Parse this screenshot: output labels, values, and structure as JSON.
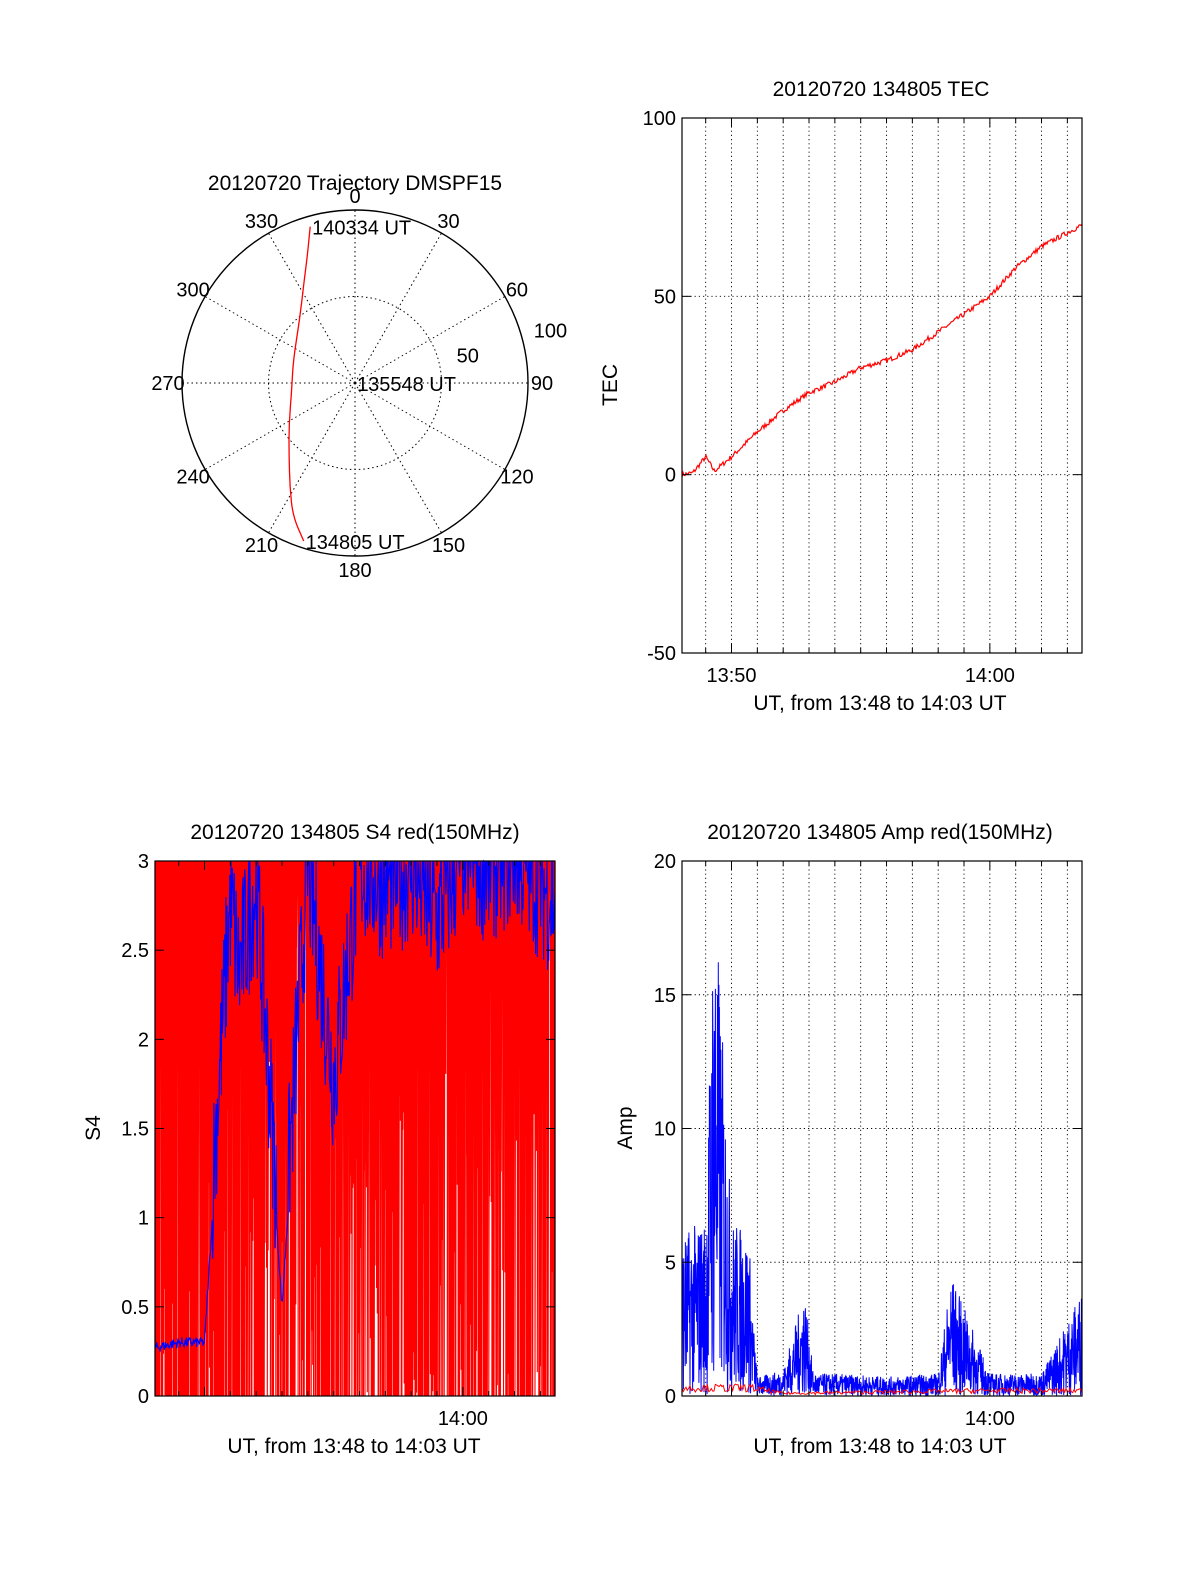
{
  "chart_data": [
    {
      "type": "polar",
      "title": "20120720 Trajectory DMSPF15",
      "angle_labels": [
        "0",
        "30",
        "60",
        "90",
        "120",
        "150",
        "180",
        "210",
        "240",
        "270",
        "300",
        "330"
      ],
      "radius_labels": [
        "50",
        "100"
      ],
      "rmax": 100,
      "series": [
        {
          "color": "#ff0000",
          "points": [
            {
              "az": 344,
              "r": 94
            },
            {
              "az": 340,
              "r": 80
            },
            {
              "az": 333,
              "r": 65
            },
            {
              "az": 318,
              "r": 48
            },
            {
              "az": 290,
              "r": 38
            },
            {
              "az": 262,
              "r": 37
            },
            {
              "az": 238,
              "r": 45
            },
            {
              "az": 222,
              "r": 57
            },
            {
              "az": 212,
              "r": 71
            },
            {
              "az": 205,
              "r": 85
            },
            {
              "az": 198,
              "r": 96
            }
          ]
        }
      ],
      "annotations": [
        {
          "text": "140334 UT",
          "az": 344,
          "r": 94
        },
        {
          "text": "135548 UT",
          "az": 180,
          "r": 0
        },
        {
          "text": "134805 UT",
          "az": 198,
          "r": 96
        }
      ]
    },
    {
      "type": "line",
      "title": "20120720 134805 TEC",
      "xlabel": "UT, from 13:48 to 14:03 UT",
      "ylabel": "TEC",
      "xlim": [
        "13:48:05",
        "14:03:34"
      ],
      "ylim": [
        -50,
        100
      ],
      "yticks": [
        -50,
        0,
        50,
        100
      ],
      "xticks": [
        "13:50",
        "14:00"
      ],
      "grid": true,
      "series": [
        {
          "color": "#ff0000",
          "x": [
            "13:48:05",
            "13:48:30",
            "13:49:00",
            "13:49:20",
            "13:49:40",
            "13:50:00",
            "13:51:00",
            "13:52:00",
            "13:53:00",
            "13:54:00",
            "13:55:00",
            "13:56:00",
            "13:57:00",
            "13:58:00",
            "13:59:00",
            "14:00:00",
            "14:01:00",
            "14:02:00",
            "14:03:34"
          ],
          "y": [
            0,
            0.5,
            5,
            1,
            3,
            5,
            12,
            18,
            23,
            26,
            30,
            32,
            35,
            40,
            45,
            50,
            58,
            64,
            70
          ]
        }
      ]
    },
    {
      "type": "line",
      "title": "20120720 134805 S4 red(150MHz)",
      "xlabel": "UT, from 13:48 to 14:03 UT",
      "ylabel": "S4",
      "xlim": [
        "13:48:05",
        "14:03:34"
      ],
      "ylim": [
        0,
        3
      ],
      "yticks": [
        0,
        0.5,
        1,
        1.5,
        2,
        2.5,
        3
      ],
      "xticks": [
        "14:00"
      ],
      "series": [
        {
          "color": "#0000ff",
          "x": [
            "13:48:05",
            "13:49:00",
            "13:50:00",
            "13:51:00",
            "13:51:20",
            "13:52:00",
            "13:53:00",
            "13:54:00",
            "13:55:00",
            "13:56:00",
            "13:57:00",
            "13:58:00",
            "13:59:00",
            "14:00:00",
            "14:01:00",
            "14:02:00",
            "14:03:34"
          ],
          "y": [
            0.27,
            0.3,
            0.3,
            2.6,
            2.2,
            2.7,
            0.5,
            2.8,
            1.6,
            2.8,
            2.7,
            2.8,
            2.5,
            2.9,
            2.8,
            2.9,
            2.6
          ]
        },
        {
          "color": "#ff0000",
          "x": [
            "13:48:05",
            "13:49:00",
            "13:50:00",
            "13:51:00",
            "13:52:00",
            "13:53:00",
            "13:54:00",
            "13:55:00",
            "13:56:00",
            "13:57:00",
            "13:58:00",
            "13:59:00",
            "14:00:00",
            "14:01:00",
            "14:02:00",
            "14:03:34"
          ],
          "y": [
            3,
            3,
            3,
            3,
            3,
            3,
            3,
            3,
            3,
            3,
            3,
            3,
            3,
            3,
            3,
            3
          ]
        }
      ]
    },
    {
      "type": "line",
      "title": "20120720 134805 Amp red(150MHz)",
      "xlabel": "UT, from 13:48 to 14:03 UT",
      "ylabel": "Amp",
      "xlim": [
        "13:48:05",
        "14:03:34"
      ],
      "ylim": [
        0,
        20
      ],
      "yticks": [
        0,
        5,
        10,
        15,
        20
      ],
      "xticks": [
        "14:00"
      ],
      "grid": true,
      "series": [
        {
          "color": "#0000ff",
          "x": [
            "13:48:05",
            "13:49:00",
            "13:49:20",
            "13:50:00",
            "13:50:40",
            "13:51:00",
            "13:52:00",
            "13:52:50",
            "13:53:10",
            "13:54:00",
            "13:56:00",
            "13:58:00",
            "13:58:30",
            "14:00:00",
            "14:02:00",
            "14:03:34"
          ],
          "y": [
            4.5,
            5,
            14.5,
            5,
            4.5,
            0.6,
            0.8,
            3.3,
            0.7,
            0.7,
            0.6,
            0.7,
            3.8,
            0.7,
            0.7,
            3.3
          ]
        },
        {
          "color": "#ff0000",
          "x": [
            "13:48:05",
            "13:50:45",
            "13:52:00",
            "14:00:00",
            "14:03:34"
          ],
          "y": [
            0.3,
            0.3,
            0.1,
            0.2,
            0.2
          ]
        }
      ]
    }
  ]
}
